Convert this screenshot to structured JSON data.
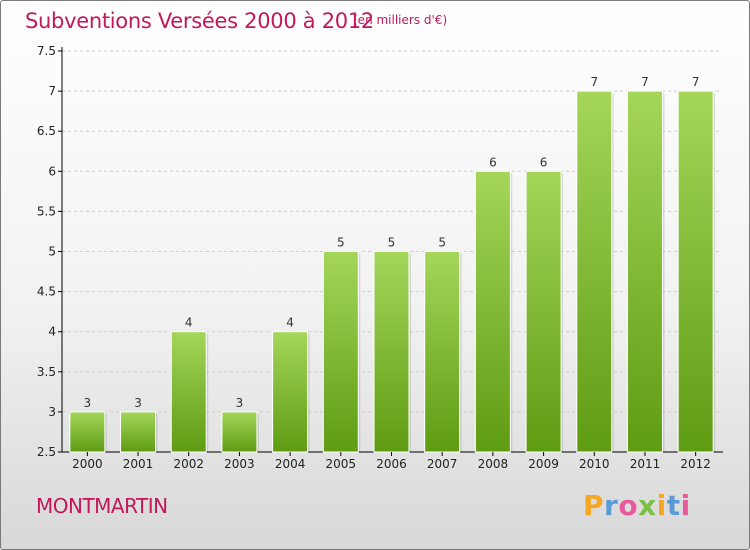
{
  "header": {
    "title": "Subventions Versées 2000 à 2012",
    "unit": "(en milliers d'€)"
  },
  "footer": {
    "commune": "MONTMARTIN",
    "logo_letters": [
      "P",
      "r",
      "o",
      "x",
      "i",
      "t",
      "i"
    ],
    "logo_colors": [
      "#f5a623",
      "#5b9bd5",
      "#e85a9a",
      "#7ac143",
      "#f5a623",
      "#5b9bd5",
      "#e85a9a"
    ]
  },
  "colors": {
    "title": "#c2185b",
    "bar_light": "#a4d65a",
    "bar_dark": "#5e9c12",
    "axis": "#000000",
    "grid": "#cccccc"
  },
  "chart_data": {
    "type": "bar",
    "categories": [
      "2000",
      "2001",
      "2002",
      "2003",
      "2004",
      "2005",
      "2006",
      "2007",
      "2008",
      "2009",
      "2010",
      "2011",
      "2012"
    ],
    "values": [
      3,
      3,
      4,
      3,
      4,
      5,
      5,
      5,
      6,
      6,
      7,
      7,
      7
    ],
    "ylim": [
      2.5,
      7.5
    ],
    "yticks": [
      "2.5",
      "3",
      "3.5",
      "4",
      "4.5",
      "5",
      "5.5",
      "6",
      "6.5",
      "7",
      "7.5"
    ],
    "grid": "horizontal dashed",
    "legend": "none"
  }
}
